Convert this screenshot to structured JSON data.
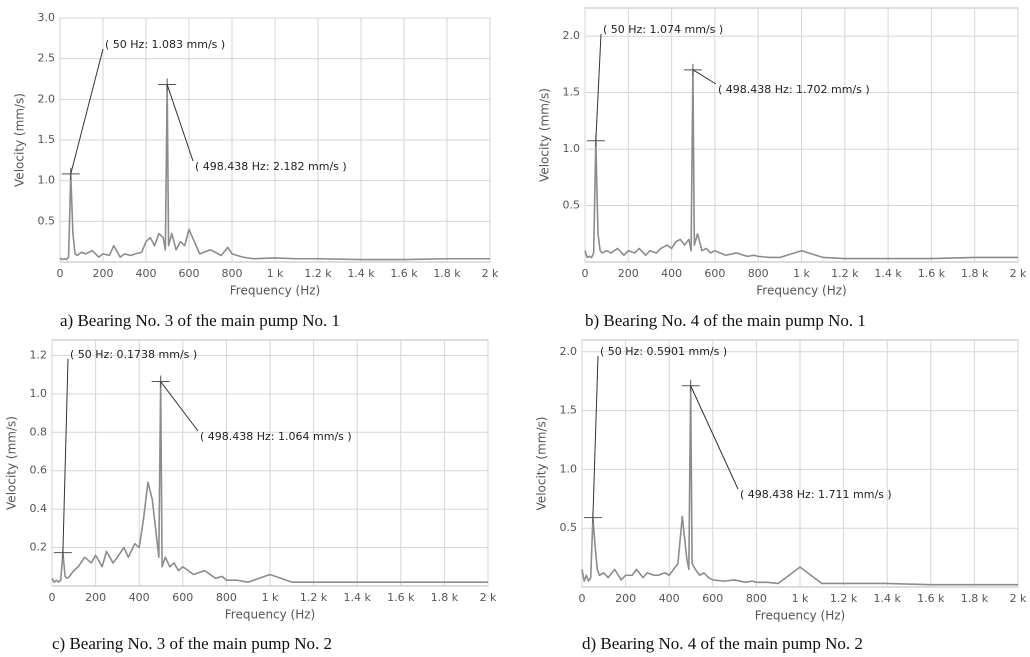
{
  "chart_data": [
    {
      "type": "line",
      "caption": "a) Bearing No. 3 of the main pump No. 1",
      "xlabel": "Frequency (Hz)",
      "ylabel": "Velocity (mm/s)",
      "color": "#8c8c8c",
      "grid": true,
      "xlim": [
        0,
        2000
      ],
      "ylim": [
        0,
        3
      ],
      "xticks": [
        0,
        200,
        400,
        600,
        800,
        {
          "value": 1000,
          "label": "1 k"
        },
        {
          "value": 1200,
          "label": "1.2 k"
        },
        {
          "value": 1400,
          "label": "1.4 k"
        },
        {
          "value": 1600,
          "label": "1.6 k"
        },
        {
          "value": 1800,
          "label": "1.8 k"
        },
        {
          "value": 2000,
          "label": "2 k"
        }
      ],
      "yticks": [
        0.5,
        {
          "value": 1,
          "label": "1.0"
        },
        1.5,
        {
          "value": 2,
          "label": "2.0"
        },
        2.5,
        {
          "value": 3,
          "label": "3.0"
        }
      ],
      "x": [
        0,
        10,
        20,
        30,
        40,
        50,
        60,
        70,
        80,
        100,
        120,
        150,
        180,
        200,
        230,
        250,
        280,
        300,
        330,
        350,
        380,
        400,
        420,
        440,
        460,
        480,
        490,
        498.438,
        505,
        520,
        540,
        560,
        580,
        600,
        650,
        700,
        750,
        780,
        800,
        850,
        900,
        1000,
        1100,
        1200,
        1400,
        1600,
        1800,
        2000
      ],
      "values": [
        0.05,
        0.03,
        0.04,
        0.03,
        0.06,
        1.083,
        0.35,
        0.1,
        0.08,
        0.12,
        0.1,
        0.14,
        0.06,
        0.1,
        0.08,
        0.2,
        0.06,
        0.1,
        0.08,
        0.1,
        0.12,
        0.25,
        0.3,
        0.2,
        0.35,
        0.3,
        0.15,
        2.182,
        0.2,
        0.35,
        0.15,
        0.25,
        0.2,
        0.4,
        0.1,
        0.15,
        0.08,
        0.18,
        0.1,
        0.06,
        0.04,
        0.05,
        0.04,
        0.04,
        0.03,
        0.03,
        0.04,
        0.04
      ],
      "annotations": [
        {
          "text": "( 50 Hz:  1.083 mm/s )",
          "x": 50,
          "y": 1.083
        },
        {
          "text": "( 498.438 Hz:  2.182 mm/s )",
          "x": 498.438,
          "y": 2.182
        }
      ]
    },
    {
      "type": "line",
      "caption": "b) Bearing No. 4 of the main pump No. 1",
      "xlabel": "Frequency (Hz)",
      "ylabel": "Velocity (mm/s)",
      "color": "#8c8c8c",
      "grid": true,
      "xlim": [
        0,
        2000
      ],
      "ylim": [
        0,
        2.25
      ],
      "xticks": [
        0,
        200,
        400,
        600,
        800,
        {
          "value": 1000,
          "label": "1 k"
        },
        {
          "value": 1200,
          "label": "1.2 k"
        },
        {
          "value": 1400,
          "label": "1.4 k"
        },
        {
          "value": 1600,
          "label": "1.6 k"
        },
        {
          "value": 1800,
          "label": "1.8 k"
        },
        {
          "value": 2000,
          "label": "2 k"
        }
      ],
      "yticks": [
        0.5,
        {
          "value": 1,
          "label": "1.0"
        },
        1.5,
        {
          "value": 2,
          "label": "2.0"
        }
      ],
      "x": [
        0,
        10,
        20,
        30,
        40,
        50,
        60,
        70,
        80,
        100,
        120,
        150,
        180,
        200,
        230,
        250,
        280,
        300,
        330,
        350,
        380,
        400,
        420,
        440,
        460,
        480,
        490,
        498.438,
        505,
        520,
        540,
        560,
        580,
        600,
        650,
        700,
        750,
        780,
        800,
        850,
        900,
        1000,
        1100,
        1200,
        1400,
        1600,
        1800,
        2000
      ],
      "values": [
        0.1,
        0.04,
        0.05,
        0.04,
        0.08,
        1.074,
        0.25,
        0.1,
        0.08,
        0.1,
        0.08,
        0.12,
        0.06,
        0.1,
        0.08,
        0.12,
        0.06,
        0.1,
        0.08,
        0.12,
        0.15,
        0.12,
        0.18,
        0.2,
        0.15,
        0.2,
        0.1,
        1.702,
        0.15,
        0.25,
        0.1,
        0.12,
        0.08,
        0.1,
        0.06,
        0.08,
        0.05,
        0.06,
        0.05,
        0.04,
        0.04,
        0.1,
        0.04,
        0.03,
        0.03,
        0.03,
        0.04,
        0.04
      ],
      "annotations": [
        {
          "text": "( 50 Hz:  1.074 mm/s )",
          "x": 50,
          "y": 1.074
        },
        {
          "text": "( 498.438 Hz:  1.702 mm/s )",
          "x": 498.438,
          "y": 1.702
        }
      ]
    },
    {
      "type": "line",
      "caption": "c) Bearing No. 3 of the main pump No. 2",
      "xlabel": "Frequency (Hz)",
      "ylabel": "Velocity (mm/s)",
      "color": "#8c8c8c",
      "grid": true,
      "xlim": [
        0,
        2000
      ],
      "ylim": [
        0,
        1.28
      ],
      "xticks": [
        0,
        200,
        400,
        600,
        800,
        {
          "value": 1000,
          "label": "1 k"
        },
        {
          "value": 1200,
          "label": "1.2 k"
        },
        {
          "value": 1400,
          "label": "1.4 k"
        },
        {
          "value": 1600,
          "label": "1.6 k"
        },
        {
          "value": 1800,
          "label": "1.8 k"
        },
        {
          "value": 2000,
          "label": "2 k"
        }
      ],
      "yticks": [
        0.2,
        0.4,
        0.6,
        0.8,
        {
          "value": 1,
          "label": "1.0"
        },
        1.2
      ],
      "x": [
        0,
        10,
        20,
        30,
        40,
        50,
        60,
        70,
        80,
        100,
        120,
        150,
        180,
        200,
        230,
        250,
        280,
        300,
        330,
        350,
        380,
        400,
        420,
        440,
        460,
        480,
        490,
        498.438,
        505,
        520,
        540,
        560,
        580,
        600,
        650,
        700,
        750,
        780,
        800,
        850,
        900,
        1000,
        1100,
        1200,
        1400,
        1600,
        1800,
        2000
      ],
      "values": [
        0.04,
        0.02,
        0.03,
        0.02,
        0.03,
        0.1738,
        0.05,
        0.04,
        0.05,
        0.08,
        0.1,
        0.15,
        0.12,
        0.16,
        0.1,
        0.18,
        0.12,
        0.15,
        0.2,
        0.15,
        0.22,
        0.2,
        0.35,
        0.54,
        0.45,
        0.25,
        0.15,
        1.064,
        0.1,
        0.15,
        0.1,
        0.12,
        0.08,
        0.1,
        0.06,
        0.08,
        0.04,
        0.05,
        0.03,
        0.03,
        0.02,
        0.06,
        0.02,
        0.02,
        0.02,
        0.02,
        0.02,
        0.02
      ],
      "annotations": [
        {
          "text": "( 50 Hz:  0.1738 mm/s )",
          "x": 50,
          "y": 0.1738
        },
        {
          "text": "( 498.438 Hz:  1.064 mm/s )",
          "x": 498.438,
          "y": 1.064
        }
      ]
    },
    {
      "type": "line",
      "caption": "d) Bearing No. 4 of the main pump No. 2",
      "xlabel": "Frequency (Hz)",
      "ylabel": "Velocity (mm/s)",
      "color": "#8c8c8c",
      "grid": true,
      "xlim": [
        0,
        2000
      ],
      "ylim": [
        0,
        2.1
      ],
      "xticks": [
        0,
        200,
        400,
        600,
        800,
        {
          "value": 1000,
          "label": "1 k"
        },
        {
          "value": 1200,
          "label": "1.2 k"
        },
        {
          "value": 1400,
          "label": "1.4 k"
        },
        {
          "value": 1600,
          "label": "1.6 k"
        },
        {
          "value": 1800,
          "label": "1.8 k"
        },
        {
          "value": 2000,
          "label": "2 k"
        }
      ],
      "yticks": [
        0.5,
        {
          "value": 1,
          "label": "1.0"
        },
        1.5,
        {
          "value": 2,
          "label": "2.0"
        }
      ],
      "x": [
        0,
        10,
        20,
        30,
        40,
        50,
        60,
        70,
        80,
        100,
        120,
        150,
        180,
        200,
        230,
        250,
        280,
        300,
        330,
        350,
        380,
        400,
        420,
        440,
        460,
        480,
        490,
        498.438,
        505,
        520,
        540,
        560,
        580,
        600,
        650,
        700,
        750,
        780,
        800,
        850,
        900,
        1000,
        1100,
        1200,
        1400,
        1600,
        1800,
        2000
      ],
      "values": [
        0.15,
        0.05,
        0.1,
        0.05,
        0.08,
        0.5901,
        0.35,
        0.15,
        0.1,
        0.12,
        0.08,
        0.15,
        0.06,
        0.1,
        0.1,
        0.15,
        0.08,
        0.12,
        0.1,
        0.1,
        0.12,
        0.1,
        0.15,
        0.2,
        0.6,
        0.25,
        0.15,
        1.711,
        0.2,
        0.15,
        0.1,
        0.12,
        0.08,
        0.06,
        0.05,
        0.06,
        0.04,
        0.05,
        0.04,
        0.04,
        0.03,
        0.17,
        0.03,
        0.03,
        0.03,
        0.02,
        0.02,
        0.02
      ],
      "annotations": [
        {
          "text": "( 50 Hz:  0.5901 mm/s )",
          "x": 50,
          "y": 0.5901
        },
        {
          "text": "( 498.438 Hz:  1.711 mm/s )",
          "x": 498.438,
          "y": 1.711
        }
      ]
    }
  ]
}
